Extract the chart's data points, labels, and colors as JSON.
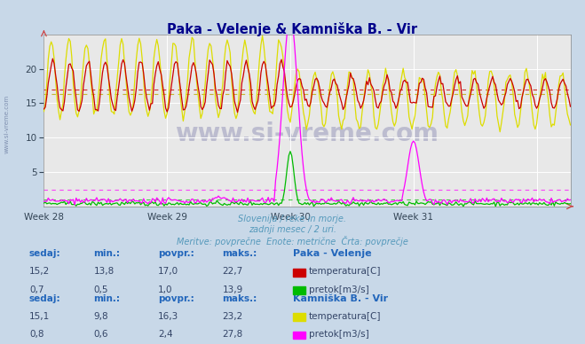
{
  "title": "Paka - Velenje & Kamniška B. - Vir",
  "title_color": "#00008b",
  "bg_color": "#c8d8e8",
  "plot_bg_color": "#e8e8e8",
  "xlabel_weeks": [
    "Week 28",
    "Week 29",
    "Week 30",
    "Week 31"
  ],
  "ylim": [
    0,
    25
  ],
  "yticks": [
    5,
    10,
    15,
    20
  ],
  "grid_color": "#ffffff",
  "subtitle_lines": [
    "Slovenija / reke in morje.",
    "zadnji mesec / 2 uri.",
    "Meritve: povprečne  Enote: metrične  Črta: povprečje"
  ],
  "subtitle_color": "#5599bb",
  "watermark": "www.si-vreme.com",
  "n_points": 360,
  "week_x": [
    0,
    84,
    168,
    252,
    336
  ],
  "paka_temp_avg": 17.0,
  "paka_flow_avg": 1.0,
  "kamniska_temp_avg": 16.3,
  "kamniska_flow_avg": 2.4,
  "color_paka_temp": "#cc0000",
  "color_paka_flow": "#00bb00",
  "color_kamniska_temp": "#dddd00",
  "color_kamniska_flow": "#ff00ff",
  "legend_table": {
    "paka_station": "Paka - Velenje",
    "paka_rows": [
      {
        "sedaj": "15,2",
        "min": "13,8",
        "povpr": "17,0",
        "maks": "22,7",
        "label": "temperatura[C]",
        "color": "#cc0000"
      },
      {
        "sedaj": "0,7",
        "min": "0,5",
        "povpr": "1,0",
        "maks": "13,9",
        "label": "pretok[m3/s]",
        "color": "#00bb00"
      }
    ],
    "kamniska_station": "Kamniška B. - Vir",
    "kamniska_rows": [
      {
        "sedaj": "15,1",
        "min": "9,8",
        "povpr": "16,3",
        "maks": "23,2",
        "label": "temperatura[C]",
        "color": "#dddd00"
      },
      {
        "sedaj": "0,8",
        "min": "0,6",
        "povpr": "2,4",
        "maks": "27,8",
        "label": "pretok[m3/s]",
        "color": "#ff00ff"
      }
    ]
  }
}
